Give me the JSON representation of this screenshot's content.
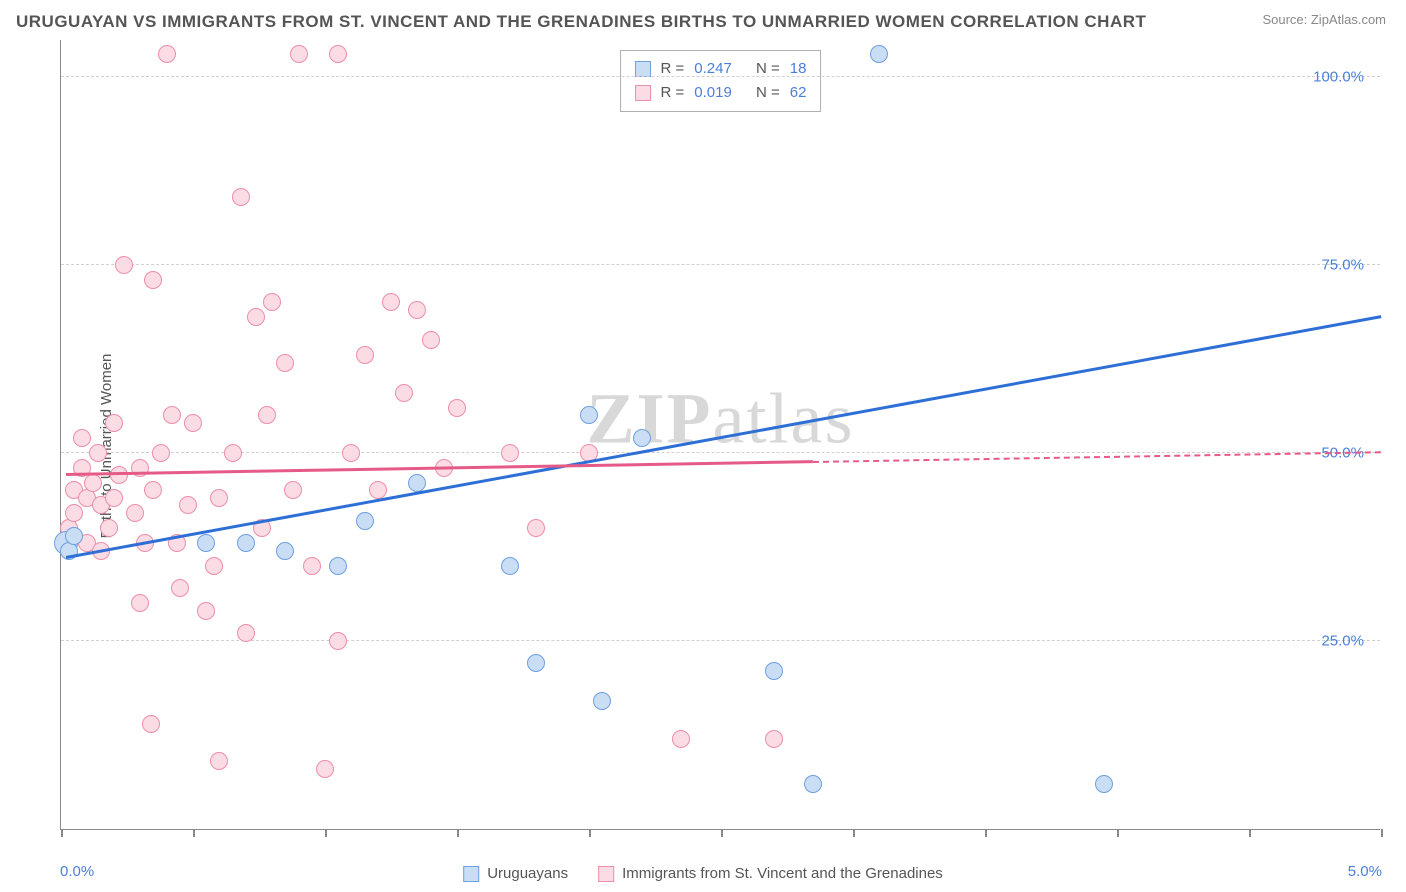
{
  "title": "URUGUAYAN VS IMMIGRANTS FROM ST. VINCENT AND THE GRENADINES BIRTHS TO UNMARRIED WOMEN CORRELATION CHART",
  "source": "Source: ZipAtlas.com",
  "y_axis_label": "Births to Unmarried Women",
  "watermark": "ZIPatlas",
  "chart": {
    "type": "scatter",
    "background_color": "#ffffff",
    "grid_color": "#d0d0d0",
    "axis_color": "#888888",
    "tick_label_color": "#4a7fd8",
    "text_color": "#555555",
    "xlim": [
      0,
      5
    ],
    "ylim": [
      0,
      105
    ],
    "x_ticks": [
      0,
      0.5,
      1.0,
      1.5,
      2.0,
      2.5,
      3.0,
      3.5,
      4.0,
      4.5,
      5.0
    ],
    "x_tick_labels": {
      "0": "0.0%",
      "5": "5.0%"
    },
    "y_grid": [
      25,
      50,
      75,
      100
    ],
    "y_tick_labels": {
      "25": "25.0%",
      "50": "50.0%",
      "75": "75.0%",
      "100": "100.0%"
    },
    "point_radius": 9,
    "point_stroke_width": 1.5,
    "series": [
      {
        "name": "Uruguayans",
        "color_fill": "#c9ddf5",
        "color_stroke": "#6fa0e0",
        "r_label": "R =",
        "r_value": "0.247",
        "n_label": "N =",
        "n_value": "18",
        "trend": {
          "x1": 0.02,
          "y1": 36,
          "x2": 5.0,
          "y2": 68,
          "solid_until_x": 5.0,
          "color": "#2e6fd6"
        },
        "points": [
          {
            "x": 0.02,
            "y": 38,
            "r": 12
          },
          {
            "x": 0.03,
            "y": 37
          },
          {
            "x": 0.05,
            "y": 39
          },
          {
            "x": 0.55,
            "y": 38
          },
          {
            "x": 0.7,
            "y": 38
          },
          {
            "x": 0.85,
            "y": 37
          },
          {
            "x": 1.05,
            "y": 35
          },
          {
            "x": 1.15,
            "y": 41
          },
          {
            "x": 1.35,
            "y": 46
          },
          {
            "x": 1.7,
            "y": 35
          },
          {
            "x": 1.8,
            "y": 22
          },
          {
            "x": 2.0,
            "y": 55
          },
          {
            "x": 2.05,
            "y": 17
          },
          {
            "x": 2.2,
            "y": 52
          },
          {
            "x": 2.7,
            "y": 21
          },
          {
            "x": 2.85,
            "y": 6
          },
          {
            "x": 3.1,
            "y": 103
          },
          {
            "x": 3.95,
            "y": 6
          }
        ]
      },
      {
        "name": "Immigrants from St. Vincent and the Grenadines",
        "color_fill": "#fbdbe4",
        "color_stroke": "#ec8fa8",
        "r_label": "R =",
        "r_value": "0.019",
        "n_label": "N =",
        "n_value": "62",
        "trend": {
          "x1": 0.02,
          "y1": 47,
          "x2": 5.0,
          "y2": 50,
          "solid_until_x": 2.85,
          "color": "#e65a88"
        },
        "points": [
          {
            "x": 0.03,
            "y": 40
          },
          {
            "x": 0.05,
            "y": 42
          },
          {
            "x": 0.05,
            "y": 45
          },
          {
            "x": 0.08,
            "y": 48
          },
          {
            "x": 0.08,
            "y": 52
          },
          {
            "x": 0.1,
            "y": 44
          },
          {
            "x": 0.1,
            "y": 38
          },
          {
            "x": 0.12,
            "y": 46
          },
          {
            "x": 0.14,
            "y": 50
          },
          {
            "x": 0.15,
            "y": 43
          },
          {
            "x": 0.15,
            "y": 37
          },
          {
            "x": 0.18,
            "y": 40
          },
          {
            "x": 0.2,
            "y": 44
          },
          {
            "x": 0.2,
            "y": 54
          },
          {
            "x": 0.22,
            "y": 47
          },
          {
            "x": 0.24,
            "y": 75
          },
          {
            "x": 0.28,
            "y": 42
          },
          {
            "x": 0.3,
            "y": 48
          },
          {
            "x": 0.3,
            "y": 30
          },
          {
            "x": 0.32,
            "y": 38
          },
          {
            "x": 0.34,
            "y": 14
          },
          {
            "x": 0.35,
            "y": 45
          },
          {
            "x": 0.35,
            "y": 73
          },
          {
            "x": 0.38,
            "y": 50
          },
          {
            "x": 0.4,
            "y": 103
          },
          {
            "x": 0.42,
            "y": 55
          },
          {
            "x": 0.44,
            "y": 38
          },
          {
            "x": 0.45,
            "y": 32
          },
          {
            "x": 0.48,
            "y": 43
          },
          {
            "x": 0.5,
            "y": 54
          },
          {
            "x": 0.55,
            "y": 29
          },
          {
            "x": 0.58,
            "y": 35
          },
          {
            "x": 0.6,
            "y": 44
          },
          {
            "x": 0.6,
            "y": 9
          },
          {
            "x": 0.65,
            "y": 50
          },
          {
            "x": 0.68,
            "y": 84
          },
          {
            "x": 0.7,
            "y": 26
          },
          {
            "x": 0.74,
            "y": 68
          },
          {
            "x": 0.76,
            "y": 40
          },
          {
            "x": 0.78,
            "y": 55
          },
          {
            "x": 0.8,
            "y": 70
          },
          {
            "x": 0.85,
            "y": 62
          },
          {
            "x": 0.88,
            "y": 45
          },
          {
            "x": 0.9,
            "y": 103
          },
          {
            "x": 0.95,
            "y": 35
          },
          {
            "x": 1.0,
            "y": 8
          },
          {
            "x": 1.05,
            "y": 25
          },
          {
            "x": 1.05,
            "y": 103
          },
          {
            "x": 1.1,
            "y": 50
          },
          {
            "x": 1.15,
            "y": 63
          },
          {
            "x": 1.2,
            "y": 45
          },
          {
            "x": 1.25,
            "y": 70
          },
          {
            "x": 1.3,
            "y": 58
          },
          {
            "x": 1.35,
            "y": 69
          },
          {
            "x": 1.4,
            "y": 65
          },
          {
            "x": 1.45,
            "y": 48
          },
          {
            "x": 1.5,
            "y": 56
          },
          {
            "x": 1.7,
            "y": 50
          },
          {
            "x": 1.8,
            "y": 40
          },
          {
            "x": 2.0,
            "y": 50
          },
          {
            "x": 2.35,
            "y": 12
          },
          {
            "x": 2.7,
            "y": 12
          }
        ]
      }
    ]
  },
  "legend": {
    "series1": "Uruguayans",
    "series2": "Immigrants from St. Vincent and the Grenadines"
  }
}
